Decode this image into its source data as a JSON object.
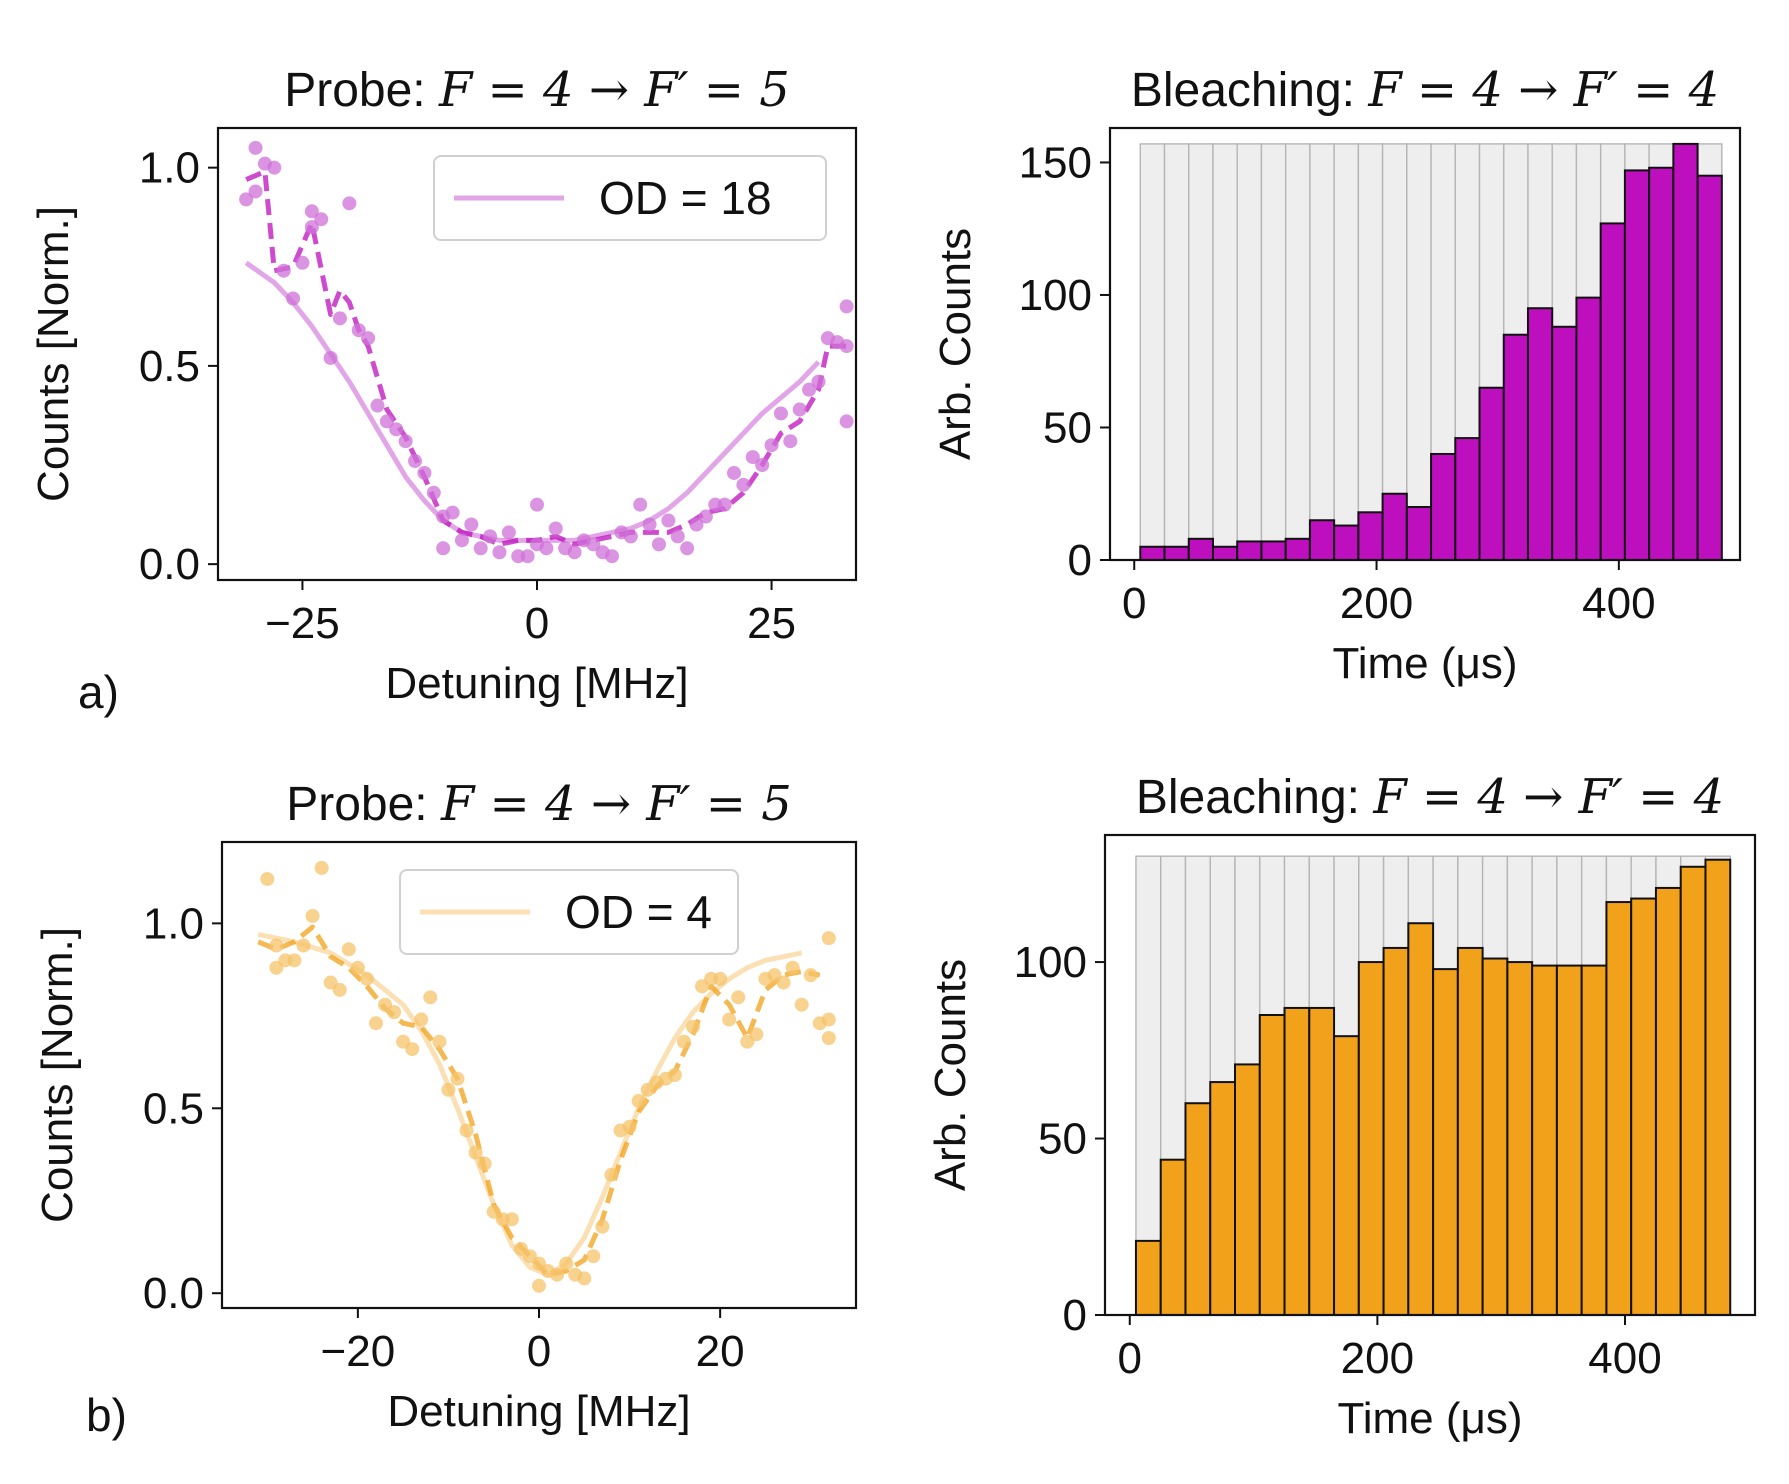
{
  "panel_labels": {
    "a": "a)",
    "b": "b)"
  },
  "colors": {
    "purple": "#bd0fbd",
    "purple_light": "#e2a6e8",
    "purple_point": "#cf70d8",
    "orange": "#f2a11a",
    "orange_light": "#fbe0b4",
    "orange_point": "#f6c36a",
    "bg_bar": "#eeeeee"
  },
  "chart_data": [
    {
      "id": "a-probe",
      "type": "scatter",
      "title_prefix": "Probe: ",
      "title_math": "F = 4 → F′ = 5",
      "xlabel": "Detuning [MHz]",
      "ylabel": "Counts [Norm.]",
      "xlim": [
        -34,
        34
      ],
      "ylim": [
        -0.04,
        1.1
      ],
      "xticks": [
        -25,
        0,
        25
      ],
      "xtick_labels": [
        "−25",
        "0",
        "25"
      ],
      "yticks": [
        0.0,
        0.5,
        1.0
      ],
      "ytick_labels": [
        "0.0",
        "0.5",
        "1.0"
      ],
      "legend": {
        "label": "OD = 18",
        "position": "top-right"
      },
      "color_key": "purple",
      "points": [
        [
          -31,
          0.92
        ],
        [
          -30,
          1.05
        ],
        [
          -30,
          0.94
        ],
        [
          -29,
          1.01
        ],
        [
          -28,
          1.0
        ],
        [
          -27,
          0.74
        ],
        [
          -26,
          0.67
        ],
        [
          -25,
          0.76
        ],
        [
          -24,
          0.85
        ],
        [
          -24,
          0.89
        ],
        [
          -23,
          0.87
        ],
        [
          -22,
          0.52
        ],
        [
          -21,
          0.62
        ],
        [
          -20,
          0.91
        ],
        [
          -19,
          0.59
        ],
        [
          -18,
          0.57
        ],
        [
          -17,
          0.4
        ],
        [
          -16,
          0.36
        ],
        [
          -15,
          0.34
        ],
        [
          -14,
          0.31
        ],
        [
          -13,
          0.26
        ],
        [
          -12,
          0.23
        ],
        [
          -11,
          0.18
        ],
        [
          -10,
          0.04
        ],
        [
          -10,
          0.12
        ],
        [
          -9,
          0.13
        ],
        [
          -8,
          0.06
        ],
        [
          -7,
          0.1
        ],
        [
          -6,
          0.04
        ],
        [
          -5,
          0.07
        ],
        [
          -4,
          0.03
        ],
        [
          -3,
          0.08
        ],
        [
          -2,
          0.02
        ],
        [
          -1,
          0.02
        ],
        [
          0,
          0.05
        ],
        [
          0,
          0.15
        ],
        [
          1,
          0.04
        ],
        [
          2,
          0.09
        ],
        [
          3,
          0.04
        ],
        [
          4,
          0.03
        ],
        [
          5,
          0.06
        ],
        [
          6,
          0.05
        ],
        [
          7,
          0.03
        ],
        [
          8,
          0.02
        ],
        [
          9,
          0.08
        ],
        [
          10,
          0.07
        ],
        [
          11,
          0.15
        ],
        [
          12,
          0.1
        ],
        [
          13,
          0.05
        ],
        [
          14,
          0.11
        ],
        [
          15,
          0.07
        ],
        [
          16,
          0.04
        ],
        [
          17,
          0.1
        ],
        [
          18,
          0.12
        ],
        [
          19,
          0.15
        ],
        [
          20,
          0.15
        ],
        [
          21,
          0.23
        ],
        [
          22,
          0.2
        ],
        [
          23,
          0.27
        ],
        [
          24,
          0.25
        ],
        [
          25,
          0.3
        ],
        [
          26,
          0.38
        ],
        [
          27,
          0.31
        ],
        [
          28,
          0.39
        ],
        [
          29,
          0.44
        ],
        [
          30,
          0.46
        ],
        [
          31,
          0.57
        ],
        [
          32,
          0.56
        ],
        [
          33,
          0.65
        ],
        [
          33,
          0.55
        ],
        [
          33,
          0.36
        ]
      ],
      "dashed": [
        [
          -31,
          0.97
        ],
        [
          -29,
          0.99
        ],
        [
          -28,
          0.74
        ],
        [
          -26,
          0.75
        ],
        [
          -24,
          0.86
        ],
        [
          -22,
          0.63
        ],
        [
          -21,
          0.69
        ],
        [
          -20,
          0.66
        ],
        [
          -19,
          0.59
        ],
        [
          -18,
          0.55
        ],
        [
          -16,
          0.39
        ],
        [
          -14,
          0.32
        ],
        [
          -12,
          0.22
        ],
        [
          -10,
          0.11
        ],
        [
          -8,
          0.08
        ],
        [
          -6,
          0.07
        ],
        [
          -4,
          0.05
        ],
        [
          -2,
          0.06
        ],
        [
          0,
          0.06
        ],
        [
          2,
          0.07
        ],
        [
          4,
          0.05
        ],
        [
          6,
          0.06
        ],
        [
          8,
          0.07
        ],
        [
          10,
          0.08
        ],
        [
          12,
          0.08
        ],
        [
          14,
          0.08
        ],
        [
          16,
          0.1
        ],
        [
          18,
          0.13
        ],
        [
          20,
          0.14
        ],
        [
          22,
          0.18
        ],
        [
          24,
          0.25
        ],
        [
          26,
          0.33
        ],
        [
          28,
          0.36
        ],
        [
          30,
          0.44
        ],
        [
          31,
          0.55
        ],
        [
          33,
          0.55
        ]
      ],
      "fit": [
        [
          -31,
          0.76
        ],
        [
          -28,
          0.71
        ],
        [
          -26,
          0.66
        ],
        [
          -24,
          0.6
        ],
        [
          -22,
          0.53
        ],
        [
          -20,
          0.46
        ],
        [
          -18,
          0.38
        ],
        [
          -16,
          0.3
        ],
        [
          -14,
          0.22
        ],
        [
          -12,
          0.16
        ],
        [
          -10,
          0.11
        ],
        [
          -8,
          0.08
        ],
        [
          -6,
          0.07
        ],
        [
          -4,
          0.06
        ],
        [
          -2,
          0.06
        ],
        [
          0,
          0.06
        ],
        [
          2,
          0.06
        ],
        [
          4,
          0.06
        ],
        [
          6,
          0.07
        ],
        [
          8,
          0.08
        ],
        [
          10,
          0.09
        ],
        [
          12,
          0.11
        ],
        [
          14,
          0.14
        ],
        [
          16,
          0.18
        ],
        [
          18,
          0.23
        ],
        [
          20,
          0.28
        ],
        [
          22,
          0.33
        ],
        [
          24,
          0.38
        ],
        [
          26,
          0.42
        ],
        [
          28,
          0.46
        ],
        [
          30,
          0.51
        ]
      ]
    },
    {
      "id": "a-bleach",
      "type": "bar",
      "title_prefix": "Bleaching: ",
      "title_math": "F = 4 → F′ = 4",
      "xlabel": "Time (μs)",
      "ylabel": "Arb. Counts",
      "xlim": [
        -20,
        500
      ],
      "ylim": [
        0,
        163
      ],
      "xticks": [
        0,
        200,
        400
      ],
      "xtick_labels": [
        "0",
        "200",
        "400"
      ],
      "yticks": [
        0,
        50,
        100,
        150
      ],
      "ytick_labels": [
        "0",
        "50",
        "100",
        "150"
      ],
      "bin_start": 5,
      "bin_width": 20,
      "background_level": 157,
      "color_key": "purple",
      "values": [
        5,
        5,
        8,
        5,
        7,
        7,
        8,
        15,
        13,
        18,
        25,
        20,
        40,
        46,
        65,
        85,
        95,
        88,
        99,
        127,
        147,
        148,
        157,
        145
      ]
    },
    {
      "id": "b-probe",
      "type": "scatter",
      "title_prefix": "Probe: ",
      "title_math": "F = 4 → F′ = 5",
      "xlabel": "Detuning [MHz]",
      "ylabel": "Counts [Norm.]",
      "xlim": [
        -35,
        35
      ],
      "ylim": [
        -0.04,
        1.22
      ],
      "xticks": [
        -20,
        0,
        20
      ],
      "xtick_labels": [
        "−20",
        "0",
        "20"
      ],
      "yticks": [
        0.0,
        0.5,
        1.0
      ],
      "ytick_labels": [
        "0.0",
        "0.5",
        "1.0"
      ],
      "legend": {
        "label": "OD = 4",
        "position": "top-center"
      },
      "color_key": "orange",
      "points": [
        [
          -30,
          1.12
        ],
        [
          -29,
          0.94
        ],
        [
          -29,
          0.88
        ],
        [
          -28,
          0.9
        ],
        [
          -27,
          0.9
        ],
        [
          -26,
          0.94
        ],
        [
          -25,
          1.02
        ],
        [
          -24,
          1.15
        ],
        [
          -23,
          0.84
        ],
        [
          -22,
          0.82
        ],
        [
          -21,
          0.93
        ],
        [
          -20,
          0.88
        ],
        [
          -19,
          0.85
        ],
        [
          -18,
          0.73
        ],
        [
          -17,
          0.78
        ],
        [
          -16,
          0.76
        ],
        [
          -15,
          0.68
        ],
        [
          -14,
          0.66
        ],
        [
          -13,
          0.74
        ],
        [
          -12,
          0.8
        ],
        [
          -11,
          0.68
        ],
        [
          -10,
          0.55
        ],
        [
          -9,
          0.58
        ],
        [
          -8,
          0.44
        ],
        [
          -7,
          0.38
        ],
        [
          -6,
          0.35
        ],
        [
          -5,
          0.22
        ],
        [
          -4,
          0.2
        ],
        [
          -3,
          0.2
        ],
        [
          -2,
          0.12
        ],
        [
          -1,
          0.1
        ],
        [
          0,
          0.02
        ],
        [
          0,
          0.08
        ],
        [
          1,
          0.06
        ],
        [
          2,
          0.05
        ],
        [
          3,
          0.08
        ],
        [
          4,
          0.05
        ],
        [
          5,
          0.04
        ],
        [
          6,
          0.1
        ],
        [
          7,
          0.18
        ],
        [
          8,
          0.32
        ],
        [
          9,
          0.44
        ],
        [
          10,
          0.45
        ],
        [
          11,
          0.52
        ],
        [
          12,
          0.55
        ],
        [
          13,
          0.57
        ],
        [
          14,
          0.58
        ],
        [
          15,
          0.59
        ],
        [
          16,
          0.68
        ],
        [
          17,
          0.72
        ],
        [
          18,
          0.83
        ],
        [
          19,
          0.85
        ],
        [
          20,
          0.85
        ],
        [
          21,
          0.74
        ],
        [
          22,
          0.8
        ],
        [
          23,
          0.68
        ],
        [
          24,
          0.7
        ],
        [
          25,
          0.85
        ],
        [
          26,
          0.86
        ],
        [
          27,
          0.84
        ],
        [
          28,
          0.88
        ],
        [
          29,
          0.78
        ],
        [
          30,
          0.86
        ],
        [
          31,
          0.73
        ],
        [
          32,
          0.96
        ],
        [
          32,
          0.74
        ],
        [
          32,
          0.69
        ]
      ],
      "dashed": [
        [
          -31,
          0.95
        ],
        [
          -29,
          0.93
        ],
        [
          -27,
          0.95
        ],
        [
          -25,
          0.99
        ],
        [
          -23,
          0.91
        ],
        [
          -21,
          0.88
        ],
        [
          -19,
          0.83
        ],
        [
          -17,
          0.77
        ],
        [
          -15,
          0.73
        ],
        [
          -13,
          0.72
        ],
        [
          -11,
          0.66
        ],
        [
          -9,
          0.58
        ],
        [
          -7,
          0.43
        ],
        [
          -5,
          0.24
        ],
        [
          -3,
          0.15
        ],
        [
          -1,
          0.1
        ],
        [
          1,
          0.05
        ],
        [
          3,
          0.06
        ],
        [
          5,
          0.09
        ],
        [
          7,
          0.2
        ],
        [
          9,
          0.36
        ],
        [
          11,
          0.49
        ],
        [
          13,
          0.56
        ],
        [
          15,
          0.6
        ],
        [
          17,
          0.7
        ],
        [
          19,
          0.83
        ],
        [
          21,
          0.78
        ],
        [
          23,
          0.69
        ],
        [
          25,
          0.82
        ],
        [
          27,
          0.86
        ],
        [
          29,
          0.87
        ],
        [
          31,
          0.86
        ]
      ],
      "fit": [
        [
          -31,
          0.97
        ],
        [
          -27,
          0.95
        ],
        [
          -23,
          0.92
        ],
        [
          -19,
          0.86
        ],
        [
          -15,
          0.78
        ],
        [
          -13,
          0.71
        ],
        [
          -11,
          0.62
        ],
        [
          -9,
          0.5
        ],
        [
          -7,
          0.37
        ],
        [
          -5,
          0.24
        ],
        [
          -3,
          0.13
        ],
        [
          -1,
          0.07
        ],
        [
          1,
          0.05
        ],
        [
          3,
          0.08
        ],
        [
          5,
          0.15
        ],
        [
          7,
          0.26
        ],
        [
          9,
          0.38
        ],
        [
          11,
          0.5
        ],
        [
          13,
          0.6
        ],
        [
          15,
          0.69
        ],
        [
          17,
          0.76
        ],
        [
          19,
          0.81
        ],
        [
          21,
          0.85
        ],
        [
          23,
          0.88
        ],
        [
          25,
          0.9
        ],
        [
          27,
          0.91
        ],
        [
          29,
          0.92
        ]
      ]
    },
    {
      "id": "b-bleach",
      "type": "bar",
      "title_prefix": "Bleaching: ",
      "title_math": "F = 4 → F′ = 4",
      "xlabel": "Time (μs)",
      "ylabel": "Arb. Counts",
      "xlim": [
        -20,
        505
      ],
      "ylim": [
        0,
        136
      ],
      "xticks": [
        0,
        200,
        400
      ],
      "xtick_labels": [
        "0",
        "200",
        "400"
      ],
      "yticks": [
        0,
        50,
        100
      ],
      "ytick_labels": [
        "0",
        "50",
        "100"
      ],
      "bin_start": 5,
      "bin_width": 20,
      "background_level": 130,
      "color_key": "orange",
      "values": [
        21,
        44,
        60,
        66,
        71,
        85,
        87,
        87,
        79,
        100,
        104,
        111,
        98,
        104,
        101,
        100,
        99,
        99,
        99,
        117,
        118,
        121,
        127,
        129
      ]
    }
  ]
}
